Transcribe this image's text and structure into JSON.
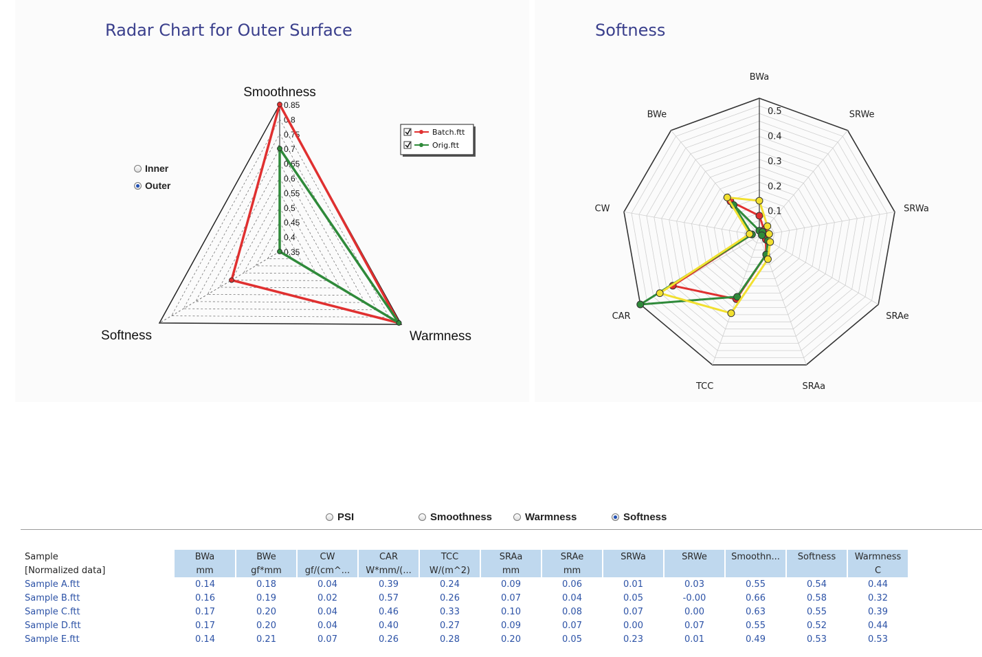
{
  "left_panel": {
    "title": "Radar Chart for Outer Surface",
    "radio_options": [
      {
        "label": "Inner",
        "selected": false
      },
      {
        "label": "Outer",
        "selected": true
      }
    ],
    "legend": [
      {
        "label": "Batch.ftt",
        "checked": true,
        "color": "#e03030"
      },
      {
        "label": "Orig.ftt",
        "checked": true,
        "color": "#2f8a3a"
      }
    ]
  },
  "right_panel": {
    "title": "Softness"
  },
  "chart_data": [
    {
      "type": "radar",
      "title": "Radar Chart for Outer Surface",
      "axes": [
        "Smoothness",
        "Warmness",
        "Softness"
      ],
      "scale": {
        "min": 0.35,
        "max": 0.85,
        "step": 0.05,
        "tick_labels": [
          "0.35",
          "0.4",
          "0.45",
          "0.5",
          "0.55",
          "0.6",
          "0.65",
          "0.7",
          "0.75",
          "0.8",
          "0.85"
        ]
      },
      "series": [
        {
          "name": "Batch.ftt",
          "color": "#e03030",
          "values": [
            0.85,
            0.84,
            0.55
          ]
        },
        {
          "name": "Orig.ftt",
          "color": "#2f8a3a",
          "values": [
            0.7,
            0.84,
            0.35
          ]
        }
      ]
    },
    {
      "type": "radar",
      "title": "Softness",
      "axes": [
        "BWa",
        "SRWe",
        "SRWa",
        "SRAe",
        "SRAa",
        "TCC",
        "CAR",
        "CW",
        "BWe"
      ],
      "scale": {
        "min": 0,
        "max": 0.55,
        "tick_labels": [
          "0.1",
          "0.2",
          "0.3",
          "0.4",
          "0.5"
        ]
      },
      "series": [
        {
          "color": "#e03030",
          "values": [
            0.08,
            0.03,
            0.02,
            0.03,
            0.08,
            0.27,
            0.4,
            0.03,
            0.18
          ]
        },
        {
          "color": "#2f8a3a",
          "values": [
            0.02,
            0.02,
            0.01,
            0.04,
            0.08,
            0.26,
            0.55,
            0.03,
            0.16
          ]
        },
        {
          "color": "#f2e030",
          "values": [
            0.14,
            0.05,
            0.04,
            0.05,
            0.1,
            0.33,
            0.46,
            0.04,
            0.2
          ]
        }
      ]
    }
  ],
  "selector": {
    "options": [
      {
        "label": "PSI",
        "selected": false
      },
      {
        "label": "Smoothness",
        "selected": false
      },
      {
        "label": "Warmness",
        "selected": false
      },
      {
        "label": "Softness",
        "selected": true
      }
    ]
  },
  "table": {
    "row_labels": [
      "Sample",
      "[Normalized data]"
    ],
    "columns": [
      {
        "name": "BWa",
        "unit": "mm"
      },
      {
        "name": "BWe",
        "unit": "gf*mm"
      },
      {
        "name": "CW",
        "unit": "gf/(cm^..."
      },
      {
        "name": "CAR",
        "unit": "W*mm/(..."
      },
      {
        "name": "TCC",
        "unit": "W/(m^2)"
      },
      {
        "name": "SRAa",
        "unit": "mm"
      },
      {
        "name": "SRAe",
        "unit": "mm"
      },
      {
        "name": "SRWa",
        "unit": ""
      },
      {
        "name": "SRWe",
        "unit": ""
      },
      {
        "name": "Smoothn...",
        "unit": ""
      },
      {
        "name": "Softness",
        "unit": ""
      },
      {
        "name": "Warmness",
        "unit": "C"
      }
    ],
    "rows": [
      {
        "name": "Sample A.ftt",
        "values": [
          "0.14",
          "0.18",
          "0.04",
          "0.39",
          "0.24",
          "0.09",
          "0.06",
          "0.01",
          "0.03",
          "0.55",
          "0.54",
          "0.44"
        ]
      },
      {
        "name": "Sample B.ftt",
        "values": [
          "0.16",
          "0.19",
          "0.02",
          "0.57",
          "0.26",
          "0.07",
          "0.04",
          "0.05",
          "-0.00",
          "0.66",
          "0.58",
          "0.32"
        ]
      },
      {
        "name": "Sample C.ftt",
        "values": [
          "0.17",
          "0.20",
          "0.04",
          "0.46",
          "0.33",
          "0.10",
          "0.08",
          "0.07",
          "0.00",
          "0.63",
          "0.55",
          "0.39"
        ]
      },
      {
        "name": "Sample D.ftt",
        "values": [
          "0.17",
          "0.20",
          "0.04",
          "0.40",
          "0.27",
          "0.09",
          "0.07",
          "0.00",
          "0.07",
          "0.55",
          "0.52",
          "0.44"
        ]
      },
      {
        "name": "Sample E.ftt",
        "values": [
          "0.14",
          "0.21",
          "0.07",
          "0.26",
          "0.28",
          "0.20",
          "0.05",
          "0.23",
          "0.01",
          "0.49",
          "0.53",
          "0.53"
        ]
      }
    ]
  }
}
